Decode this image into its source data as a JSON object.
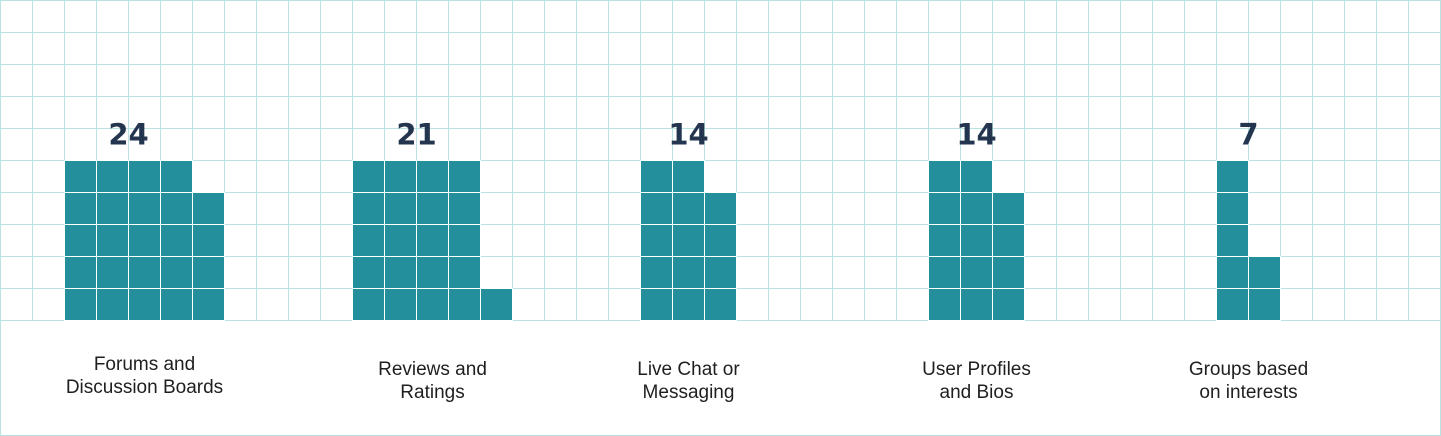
{
  "chart_data": {
    "type": "bar",
    "categories": [
      [
        "Forums and",
        "Discussion Boards"
      ],
      [
        "Reviews and",
        "Ratings"
      ],
      [
        "Live Chat or",
        "Messaging"
      ],
      [
        "User Profiles",
        "and Bios"
      ],
      [
        "Groups based",
        "on interests"
      ]
    ],
    "values": [
      24,
      21,
      14,
      14,
      7
    ],
    "units_per_column": 5,
    "grid": true,
    "colors": {
      "bar": "#238f9d",
      "grid": "#b8e3e0",
      "value_label": "#24364f",
      "category_label": "#1f1f1f"
    }
  }
}
